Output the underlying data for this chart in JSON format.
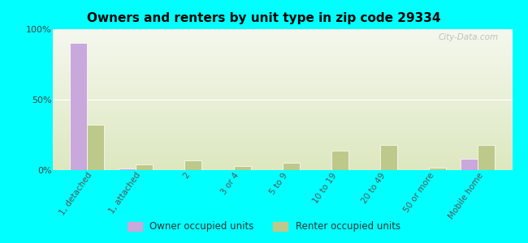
{
  "title": "Owners and renters by unit type in zip code 29334",
  "categories": [
    "1, detached",
    "1, attached",
    "2",
    "3 or 4",
    "5 to 9",
    "10 to 19",
    "20 to 49",
    "50 or more",
    "Mobile home"
  ],
  "owner_values": [
    90,
    1,
    0,
    0,
    0,
    0,
    0,
    0,
    8
  ],
  "renter_values": [
    32,
    4,
    7,
    3,
    5,
    14,
    18,
    2,
    18
  ],
  "owner_color": "#c9a8dc",
  "renter_color": "#bdc98a",
  "background_outer": "#00ffff",
  "background_inner_top": "#f5f8ee",
  "background_inner_bottom": "#dde8c0",
  "ylim": [
    0,
    100
  ],
  "yticks": [
    0,
    50,
    100
  ],
  "ytick_labels": [
    "0%",
    "50%",
    "100%"
  ],
  "bar_width": 0.35,
  "legend_owner": "Owner occupied units",
  "legend_renter": "Renter occupied units",
  "watermark": "City-Data.com"
}
